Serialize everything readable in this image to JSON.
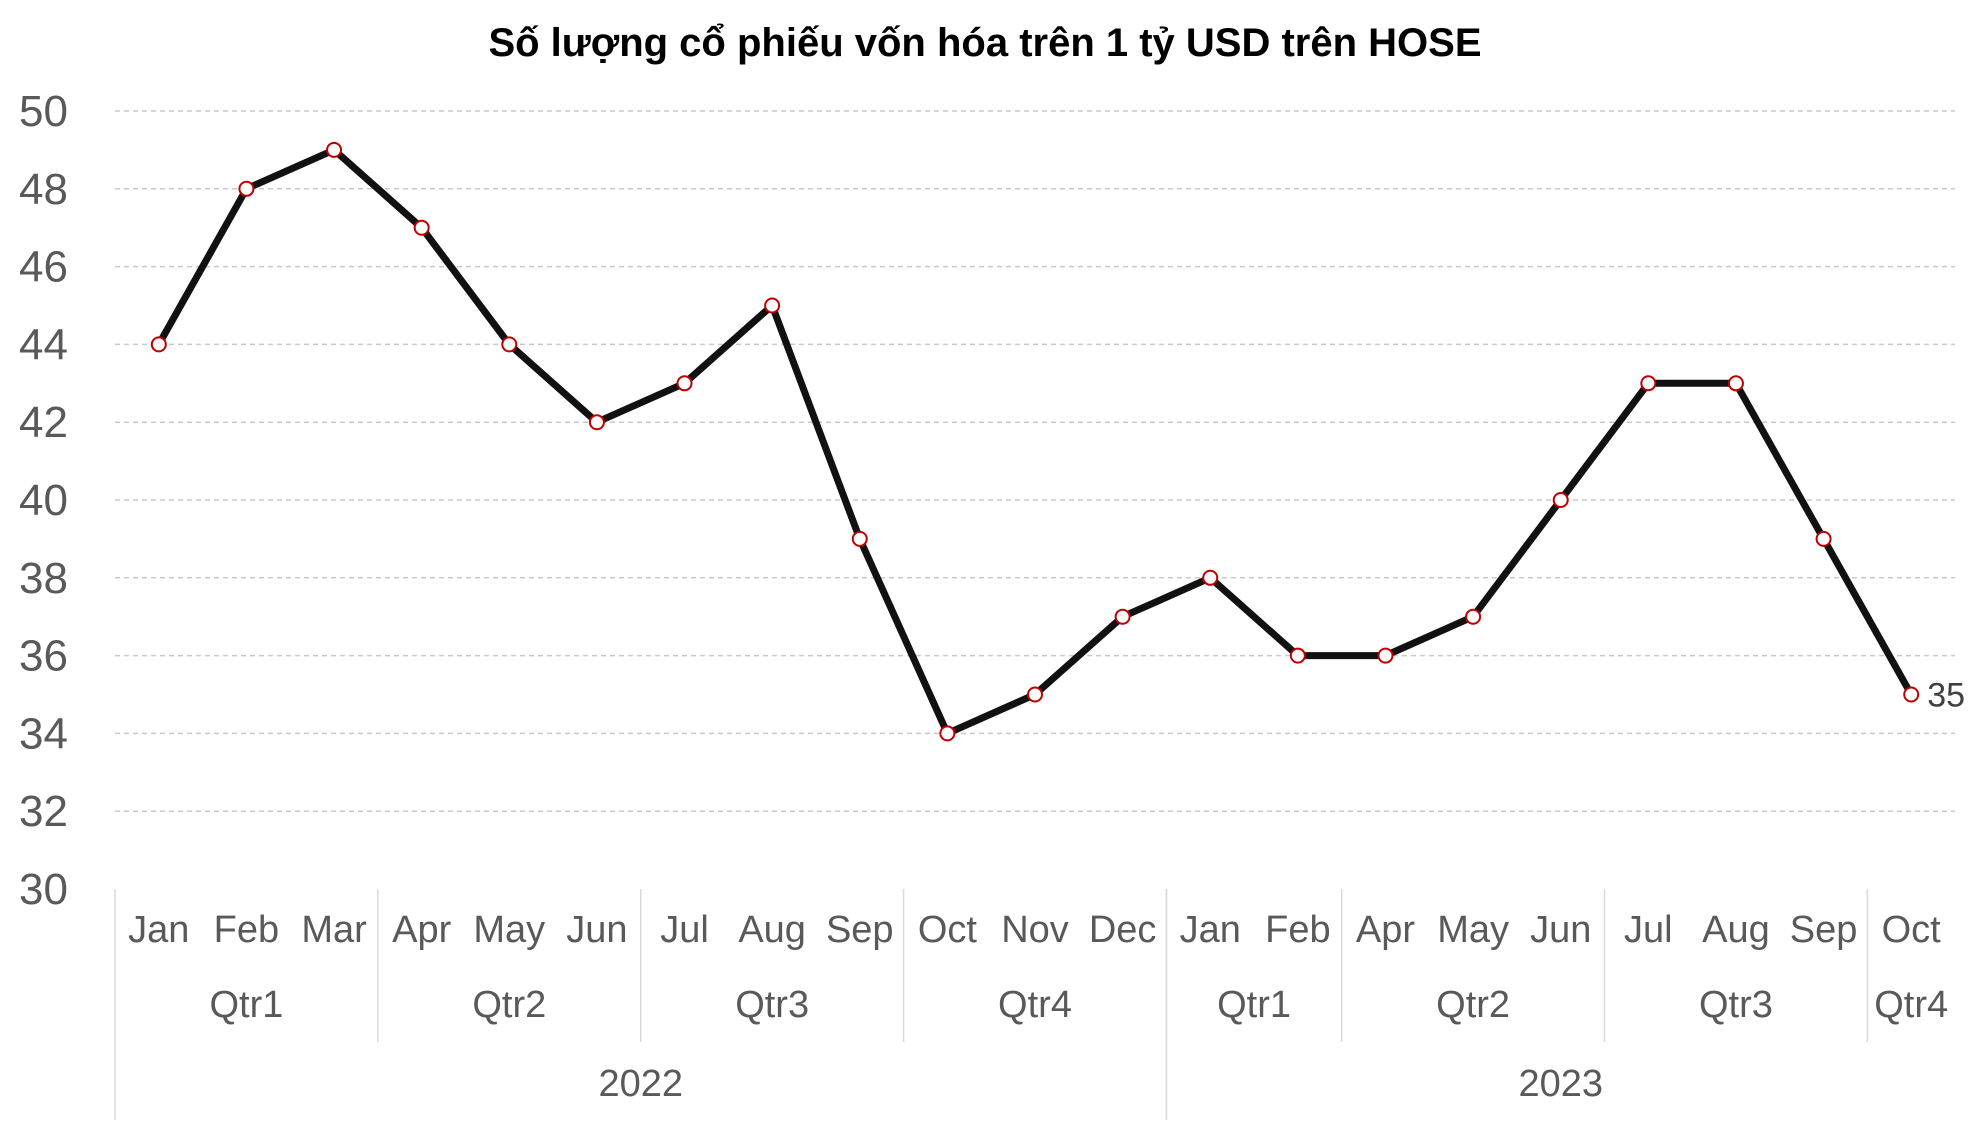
{
  "chart_data": {
    "type": "line",
    "title": "Số lượng cổ phiếu vốn hóa trên 1 tỷ USD trên HOSE",
    "xlabel": "",
    "ylabel": "",
    "ylim": [
      30,
      50
    ],
    "yticks": [
      30,
      32,
      34,
      36,
      38,
      40,
      42,
      44,
      46,
      48,
      50
    ],
    "grid": true,
    "legend": "none",
    "categories": [
      "Jan",
      "Feb",
      "Mar",
      "Apr",
      "May",
      "Jun",
      "Jul",
      "Aug",
      "Sep",
      "Oct",
      "Nov",
      "Dec",
      "Jan",
      "Feb",
      "Apr",
      "May",
      "Jun",
      "Jul",
      "Aug",
      "Sep",
      "Oct"
    ],
    "series": [
      {
        "values": [
          44,
          48,
          49,
          47,
          44,
          42,
          43,
          45,
          39,
          34,
          35,
          37,
          38,
          36,
          36,
          37,
          40,
          43,
          43,
          39,
          35
        ]
      }
    ],
    "data_labels": [
      {
        "index": 20,
        "text": "35"
      }
    ],
    "quarter_groups": [
      {
        "label": "Qtr1",
        "span": 3
      },
      {
        "label": "Qtr2",
        "span": 3
      },
      {
        "label": "Qtr3",
        "span": 3
      },
      {
        "label": "Qtr4",
        "span": 3
      },
      {
        "label": "Qtr1",
        "span": 2
      },
      {
        "label": "Qtr2",
        "span": 3
      },
      {
        "label": "Qtr3",
        "span": 3
      },
      {
        "label": "Qtr4",
        "span": 1
      }
    ],
    "year_groups": [
      {
        "label": "2022",
        "span": 12
      },
      {
        "label": "2023",
        "span": 9
      }
    ],
    "colors": {
      "title": "#ff0000",
      "line": "#111111",
      "marker_fill": "#ffffff",
      "marker_stroke": "#c00000",
      "grid": "#c8c8c8",
      "axis_text": "#595959",
      "category_divider": "#d9d9d9"
    }
  }
}
